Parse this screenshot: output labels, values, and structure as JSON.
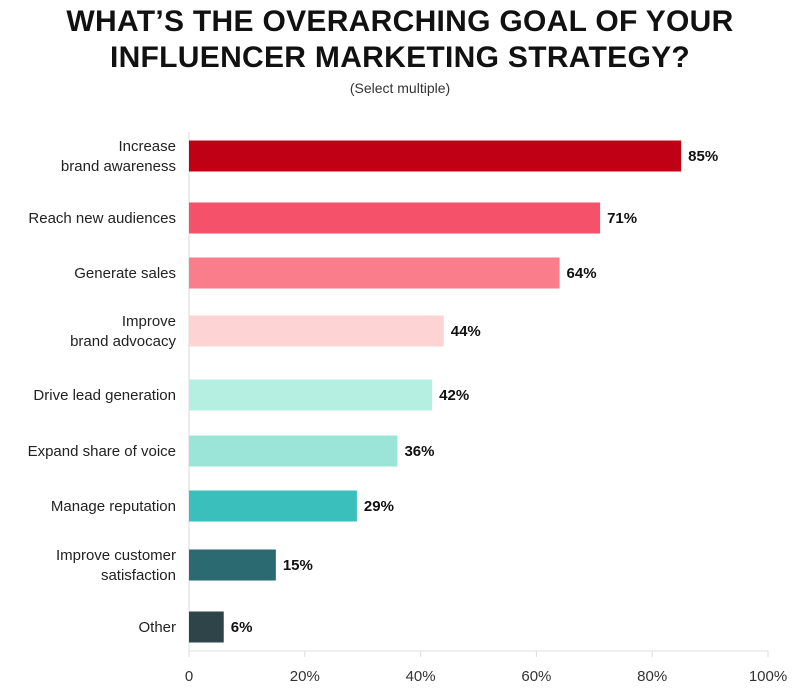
{
  "chart_data": {
    "type": "bar",
    "orientation": "horizontal",
    "title_lines": [
      "WHAT’S THE OVERARCHING GOAL OF YOUR",
      "INFLUENCER MARKETING STRATEGY?"
    ],
    "subtitle": "(Select multiple)",
    "categories": [
      [
        "Increase",
        "brand awareness"
      ],
      [
        "Reach new audiences"
      ],
      [
        "Generate sales"
      ],
      [
        "Improve",
        "brand advocacy"
      ],
      [
        "Drive lead generation"
      ],
      [
        "Expand share of voice"
      ],
      [
        "Manage reputation"
      ],
      [
        "Improve customer",
        "satisfaction"
      ],
      [
        "Other"
      ]
    ],
    "values": [
      85,
      71,
      64,
      44,
      42,
      36,
      29,
      15,
      6
    ],
    "value_labels": [
      "85%",
      "71%",
      "64%",
      "44%",
      "42%",
      "36%",
      "29%",
      "15%",
      "6%"
    ],
    "colors": [
      "#c00014",
      "#f6516a",
      "#f97d8b",
      "#fdd3d3",
      "#b5efe2",
      "#9ae5d8",
      "#3bbfbd",
      "#2b6a70",
      "#2f4449"
    ],
    "xlim": [
      0,
      100
    ],
    "xticks": [
      0,
      20,
      40,
      60,
      80,
      100
    ],
    "xtick_labels": [
      "0",
      "20%",
      "40%",
      "60%",
      "80%",
      "100%"
    ],
    "grid": false
  }
}
